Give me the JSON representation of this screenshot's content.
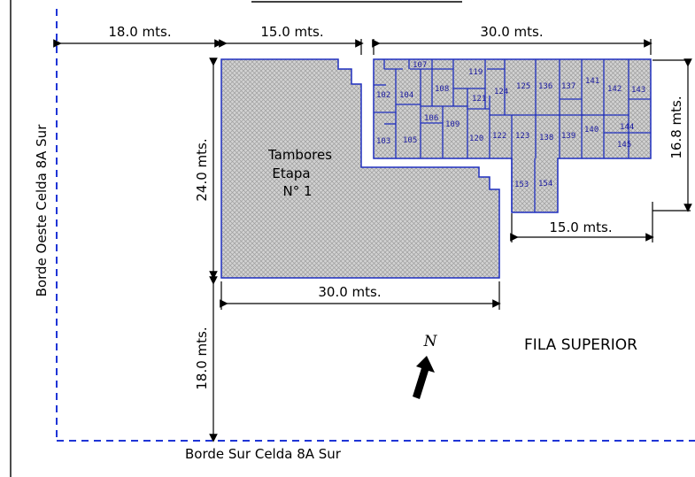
{
  "dimensions": {
    "top_left_18": "18.0 mts.",
    "top_15": "15.0 mts.",
    "top_30": "30.0 mts.",
    "left_24": "24.0 mts.",
    "right_16_8": "16.8 mts.",
    "right_lower_15": "15.0 mts.",
    "bottom_30": "30.0 mts.",
    "bottom_left_18": "18.0 mts."
  },
  "borders": {
    "west": "Borde Oeste Celda 8A Sur",
    "south": "Borde Sur Celda 8A Sur"
  },
  "stage_label": {
    "line1": "Tambores",
    "line2": "Etapa",
    "line3": "N° 1"
  },
  "row_label": "FILA SUPERIOR",
  "north_label": "N",
  "cells": [
    "107",
    "119",
    "102",
    "104",
    "108",
    "121",
    "124",
    "125",
    "136",
    "137",
    "141",
    "142",
    "143",
    "106",
    "109",
    "144",
    "103",
    "105",
    "120",
    "122",
    "123",
    "138",
    "139",
    "140",
    "145",
    "153",
    "154"
  ],
  "colors": {
    "outline_blue": "#1f2fbf",
    "dashed_blue": "#1f35d6",
    "hatch_gray": "#b9b9b9"
  }
}
